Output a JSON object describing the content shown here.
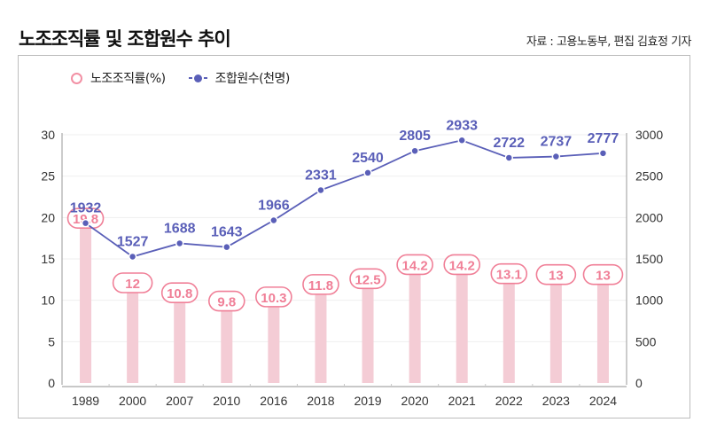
{
  "header": {
    "title": "노조조직률 및 조합원수 추이",
    "source": "자료 :  고용노동부, 편집 김효정 기자"
  },
  "legend": [
    {
      "label": "노조조직률(%)",
      "icon": "ring-marker-icon"
    },
    {
      "label": "조합원수(천명)",
      "icon": "line-dot-marker-icon"
    }
  ],
  "colors": {
    "bar": "#f4ccd5",
    "bar_label": "#f07f97",
    "line": "#5a5fb8",
    "axis": "#999999",
    "grid": "#efefef"
  },
  "chart_data": {
    "type": "bar+line",
    "title": "노조조직률 및 조합원수 추이",
    "categories": [
      "1989",
      "2000",
      "2007",
      "2010",
      "2016",
      "2018",
      "2019",
      "2020",
      "2021",
      "2022",
      "2023",
      "2024"
    ],
    "series": [
      {
        "name": "노조조직률(%)",
        "type": "bar",
        "axis": "left",
        "values": [
          19.8,
          12,
          10.8,
          9.8,
          10.3,
          11.8,
          12.5,
          14.2,
          14.2,
          13.1,
          13,
          13
        ]
      },
      {
        "name": "조합원수(천명)",
        "type": "line",
        "axis": "right",
        "values": [
          1932,
          1527,
          1688,
          1643,
          1966,
          2331,
          2540,
          2805,
          2933,
          2722,
          2737,
          2777
        ]
      }
    ],
    "y_left": {
      "ticks": [
        0,
        5,
        10,
        15,
        20,
        25,
        30
      ],
      "range": [
        0,
        30
      ]
    },
    "y_right": {
      "ticks": [
        0,
        500,
        1000,
        1500,
        2000,
        2500,
        3000
      ],
      "range": [
        0,
        3000
      ]
    },
    "grid": true,
    "legend_position": "top-left"
  }
}
